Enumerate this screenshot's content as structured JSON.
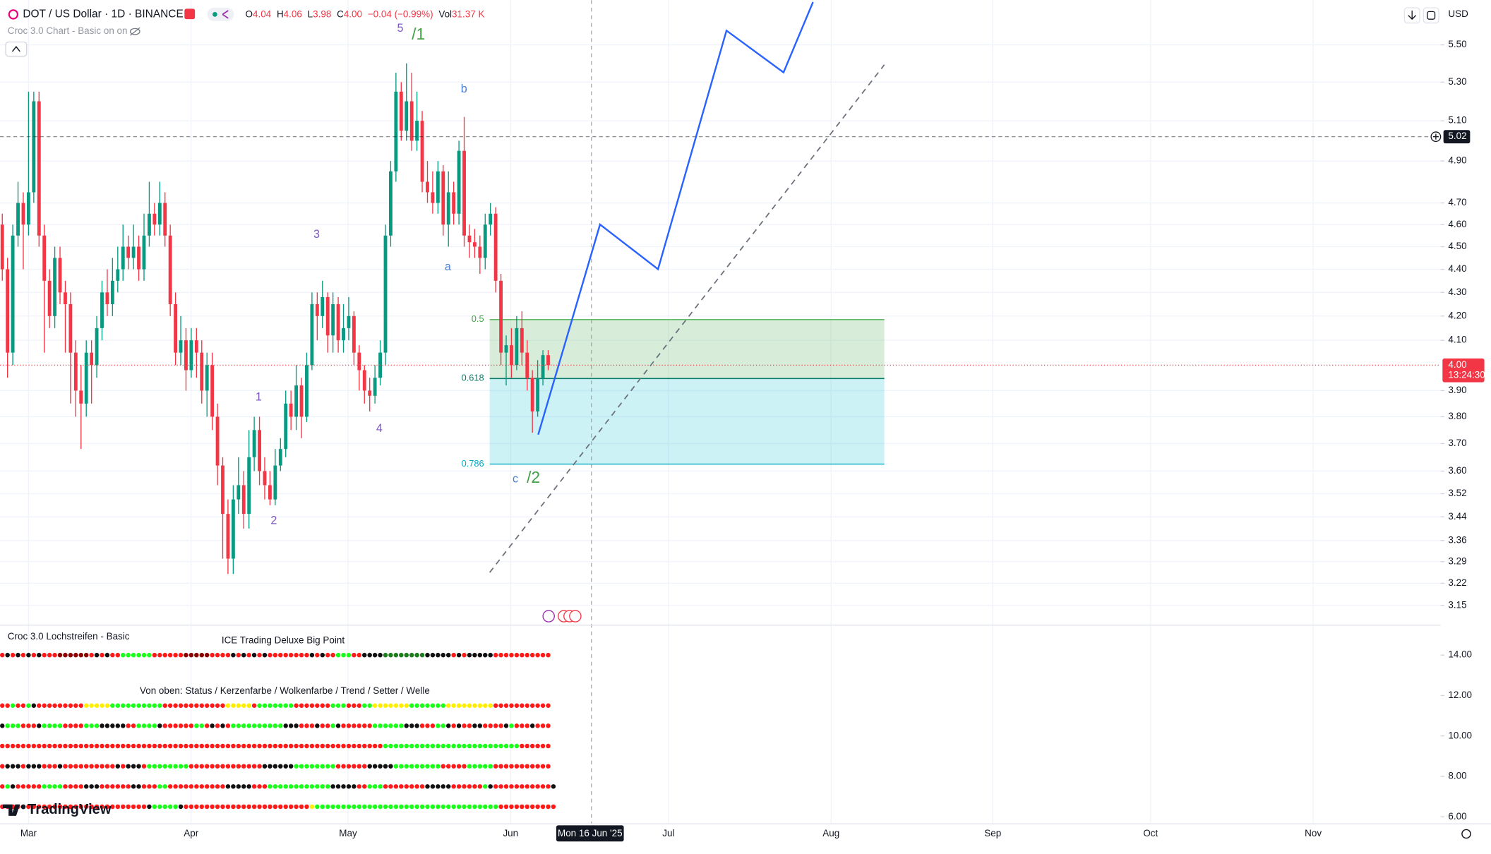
{
  "header": {
    "symbol": "DOT / US Dollar · 1D · BINANCE",
    "ohlc": [
      {
        "key": "O",
        "value": "4.04"
      },
      {
        "key": "H",
        "value": "4.06"
      },
      {
        "key": "L",
        "value": "3.98"
      },
      {
        "key": "C",
        "value": "4.00"
      }
    ],
    "change": "−0.04 (−0.99%)",
    "volume_key": "Vol",
    "volume": "31.37 K",
    "indicator": "Croc 3.0 Chart - Basic on on",
    "currency": "USD"
  },
  "chart_data": {
    "type": "candlestick",
    "log_scale": true,
    "grid": true,
    "up_color": "#089981",
    "down_color": "#f23645",
    "ylim": [
      3.09,
      5.75
    ],
    "yticks": [
      {
        "value": 5.5,
        "label": "5.50"
      },
      {
        "value": 5.3,
        "label": "5.30"
      },
      {
        "value": 5.1,
        "label": "5.10"
      },
      {
        "value": 4.9,
        "label": "4.90"
      },
      {
        "value": 4.7,
        "label": "4.70"
      },
      {
        "value": 4.6,
        "label": "4.60"
      },
      {
        "value": 4.5,
        "label": "4.50"
      },
      {
        "value": 4.4,
        "label": "4.40"
      },
      {
        "value": 4.3,
        "label": "4.30"
      },
      {
        "value": 4.2,
        "label": "4.20"
      },
      {
        "value": 4.1,
        "label": "4.10"
      },
      {
        "value": 3.9,
        "label": "3.90"
      },
      {
        "value": 3.8,
        "label": "3.80"
      },
      {
        "value": 3.7,
        "label": "3.70"
      },
      {
        "value": 3.6,
        "label": "3.60"
      },
      3.52,
      3.44,
      3.36,
      3.29,
      3.22,
      3.15
    ],
    "x_labels": [
      "Mar",
      "Apr",
      "May",
      "Jun",
      "Jul",
      "Aug",
      "Sep",
      "Oct",
      "Nov"
    ],
    "crosshair_label": "Mon 16 Jun '25",
    "open": [
      4.6,
      4.4,
      4.05,
      4.55,
      4.7,
      4.6,
      4.75,
      5.2,
      4.55,
      4.35,
      4.2,
      4.45,
      4.3,
      4.25,
      4.05,
      3.9,
      3.85,
      4.05,
      4.0,
      4.15,
      4.3,
      4.25,
      4.35,
      4.4,
      4.5,
      4.45,
      4.5,
      4.4,
      4.55,
      4.65,
      4.6,
      4.7,
      4.55,
      4.25,
      4.05,
      4.1,
      3.98,
      4.1,
      4.05,
      3.9,
      4.0,
      3.8,
      3.62,
      3.45,
      3.3,
      3.5,
      3.55,
      3.45,
      3.65,
      3.75,
      3.6,
      3.55,
      3.5,
      3.62,
      3.68,
      3.85,
      3.8,
      3.92,
      3.8,
      4.0,
      4.25,
      4.2,
      4.28,
      4.12,
      4.25,
      4.1,
      4.15,
      4.2,
      4.05,
      3.98,
      3.9,
      3.88,
      3.95,
      4.05,
      4.55,
      4.85,
      5.25,
      5.05,
      5.2,
      5.0,
      5.1,
      4.8,
      4.75,
      4.7,
      4.85,
      4.6,
      4.75,
      4.65,
      4.95,
      4.55,
      4.52,
      4.5,
      4.45,
      4.6,
      4.65,
      4.35,
      4.05,
      4.08,
      4.0,
      4.15,
      4.05,
      3.95,
      3.82,
      3.95,
      4.04
    ],
    "high": [
      4.65,
      4.45,
      4.6,
      4.8,
      4.75,
      5.25,
      5.25,
      5.25,
      4.6,
      4.4,
      4.5,
      4.5,
      4.35,
      4.3,
      4.1,
      4.0,
      4.1,
      4.1,
      4.2,
      4.35,
      4.4,
      4.45,
      4.5,
      4.6,
      4.55,
      4.6,
      4.55,
      4.65,
      4.8,
      4.7,
      4.8,
      4.75,
      4.6,
      4.3,
      4.2,
      4.15,
      4.15,
      4.15,
      4.1,
      4.05,
      4.05,
      3.85,
      3.65,
      3.5,
      3.55,
      3.65,
      3.6,
      3.75,
      3.8,
      3.8,
      3.65,
      3.6,
      3.68,
      3.72,
      3.9,
      3.9,
      4.0,
      3.95,
      4.05,
      4.3,
      4.3,
      4.35,
      4.3,
      4.3,
      4.28,
      4.25,
      4.28,
      4.22,
      4.08,
      4.0,
      3.95,
      4.0,
      4.1,
      4.6,
      4.9,
      5.35,
      5.3,
      5.4,
      5.35,
      5.25,
      5.15,
      4.9,
      4.85,
      4.9,
      4.88,
      4.85,
      4.8,
      5.0,
      5.12,
      4.6,
      4.58,
      4.55,
      4.65,
      4.7,
      4.68,
      4.38,
      4.12,
      4.15,
      4.2,
      4.22,
      4.1,
      3.98,
      4.02,
      4.06,
      4.06
    ],
    "low": [
      4.35,
      3.95,
      4.0,
      4.5,
      4.4,
      4.55,
      4.7,
      4.5,
      4.05,
      4.15,
      4.15,
      4.25,
      4.05,
      3.85,
      3.8,
      3.68,
      3.8,
      3.85,
      3.95,
      4.1,
      4.2,
      4.2,
      4.3,
      4.35,
      4.4,
      4.4,
      4.35,
      4.35,
      4.5,
      4.55,
      4.55,
      4.5,
      4.2,
      4.0,
      4.0,
      3.9,
      3.95,
      3.95,
      3.85,
      3.8,
      3.75,
      3.55,
      3.3,
      3.25,
      3.25,
      3.45,
      3.4,
      3.4,
      3.6,
      3.55,
      3.5,
      3.48,
      3.48,
      3.6,
      3.65,
      3.75,
      3.75,
      3.72,
      3.78,
      3.98,
      4.1,
      4.15,
      4.05,
      4.05,
      4.05,
      4.05,
      4.1,
      4.0,
      3.9,
      3.85,
      3.82,
      3.85,
      3.92,
      4.0,
      4.5,
      4.8,
      5.0,
      5.0,
      4.95,
      4.95,
      4.75,
      4.7,
      4.65,
      4.65,
      4.55,
      4.5,
      4.6,
      4.6,
      4.5,
      4.45,
      4.45,
      4.38,
      4.4,
      4.55,
      4.3,
      4.0,
      3.92,
      3.95,
      3.98,
      4.0,
      3.9,
      3.74,
      3.8,
      3.92,
      3.98
    ],
    "close": [
      4.4,
      4.05,
      4.55,
      4.7,
      4.6,
      4.75,
      5.2,
      4.55,
      4.35,
      4.2,
      4.45,
      4.3,
      4.25,
      4.05,
      3.9,
      3.85,
      4.05,
      4.0,
      4.15,
      4.3,
      4.25,
      4.35,
      4.4,
      4.5,
      4.45,
      4.5,
      4.4,
      4.55,
      4.65,
      4.6,
      4.7,
      4.55,
      4.25,
      4.05,
      4.1,
      3.98,
      4.1,
      4.05,
      3.9,
      4.0,
      3.8,
      3.62,
      3.45,
      3.3,
      3.5,
      3.55,
      3.45,
      3.65,
      3.75,
      3.6,
      3.55,
      3.5,
      3.62,
      3.68,
      3.85,
      3.8,
      3.92,
      3.8,
      4.0,
      4.25,
      4.2,
      4.28,
      4.12,
      4.25,
      4.1,
      4.15,
      4.2,
      4.05,
      3.98,
      3.9,
      3.88,
      3.95,
      4.05,
      4.55,
      4.85,
      5.25,
      5.05,
      5.2,
      5.0,
      5.1,
      4.8,
      4.75,
      4.7,
      4.85,
      4.6,
      4.75,
      4.65,
      4.95,
      4.55,
      4.52,
      4.5,
      4.45,
      4.6,
      4.65,
      4.35,
      4.05,
      4.08,
      4.0,
      4.15,
      4.05,
      3.95,
      3.82,
      3.95,
      4.04,
      4.0
    ],
    "price_lines": [
      {
        "value": 4,
        "label": "4.00",
        "color": "#f23645"
      },
      {
        "value": 5.02,
        "label": "5.02",
        "color": "#131722"
      }
    ],
    "countdown": "13:24:30",
    "wave_labels": [
      "5",
      "/1",
      "b",
      "3",
      "a",
      "1",
      "4",
      "2",
      "c",
      "/2"
    ],
    "fib_levels": [
      0.5,
      0.618,
      0.786
    ],
    "indicator_pane": {
      "title": "Croc 3.0 Lochstreifen - Basic",
      "subtitle": "ICE Trading Deluxe Big Point",
      "caption": "Von oben: Status / Kerzenfarbe / Wolkenfarbe / Trend / Setter / Welle",
      "ylim": [
        5.86,
        15.36
      ],
      "yticks": [
        {
          "value": 14,
          "label": "14.00"
        },
        {
          "value": 12,
          "label": "12.00"
        },
        {
          "value": 10,
          "label": "10.00"
        },
        {
          "value": 8,
          "label": "8.00"
        },
        {
          "value": 6,
          "label": "6.00"
        }
      ],
      "state_colors": {
        "r": "#ff1a1a",
        "g": "#1aff1a",
        "k": "#111111",
        "y": "#ffee00",
        "d": "#1e7b1e",
        "m": "#8b0000"
      },
      "rows": [
        {
          "level": 14,
          "states": "rkrkrkrkrrrmmmmmmrkrkrrggggggrrrrrrmmmmmrrrrkrkrkrkrrrrrrrrkrkrrgggrrkkkkddddddddkkkkkrkrkkkkkrrrrrrrrrrr"
        },
        {
          "level": 11.5,
          "states": "rrgrrgkrrrrrrrrryyyyyggggggggggrrrrrrrrrrrryyyyyrgggggggrrrrrrrgggrrrggyyyyyyygggggggyyyyyyyyyrrrrrrrrrrr"
        },
        {
          "level": 10.5,
          "states": "kgggrrrkggggrrrrgggkkkkkrrggggkrrrrrrggrkrkrggggggggggkkkrrrkrrgkrrrrrrggggggkkkrrrggkrkrrkkrrrrkgrrrkrrr"
        },
        {
          "level": 9.5,
          "states": "rrrrrrrrrrrrrrrrrrrrrrrrrrrrrrrrrrrrrrrrrrrrrrrrrrrrrrrrrrrrrrrrrrrrrrrrrggggggggggggggggggggggggggrrrrrr"
        },
        {
          "level": 8.5,
          "states": "rkkkrkkkrrrkrrrrrrrrrrkrkkkrggggggggrrrrrrrrrrrrrrkkkkkkggggggggrrrrrrkkkkkgggggggggrrrrrgggggrrrrrrrrrrr"
        },
        {
          "level": 7.5,
          "states": "rgkrrrrrggggrrrrkkkrrrrrrkkrrrggrrrrrrrrrrrkkkkkrrrggggggggggggkkkkkrrgggrrrrrrrrkkkkkrrrrrrgkrrrrrrrrrrrk"
        },
        {
          "level": 6.5,
          "states": "rrrrrrrrrrrrrrrrrrrrrrrrrrrrkgggggkrrrrrrrrrrrrrrrrrrrrrrrrygggggggggggggggggggggggggggggggggggrrrrrrrrrrr"
        }
      ]
    }
  },
  "branding": "TradingView"
}
